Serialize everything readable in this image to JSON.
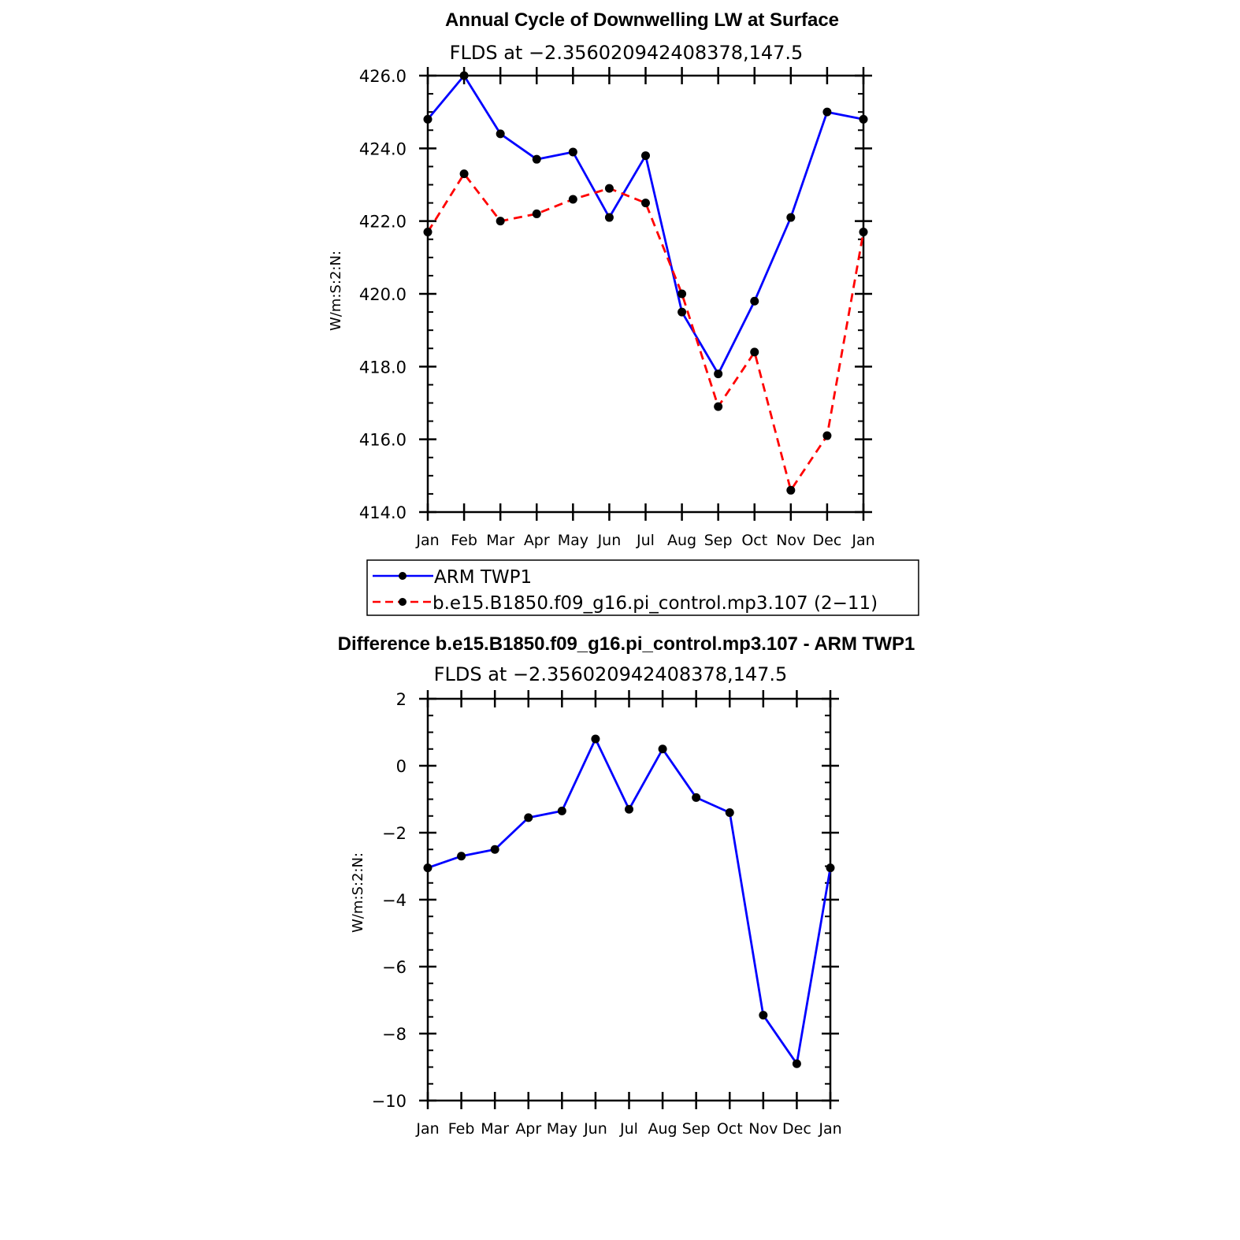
{
  "chart_data": [
    {
      "type": "line",
      "title": "Annual Cycle of Downwelling LW at Surface",
      "subtitle": "FLDS at −2.356020942408378,147.5",
      "ylabel": "W/m:S:2:N:",
      "ylim": [
        414.0,
        426.0
      ],
      "ytick_labels": [
        "426.0",
        "424.0",
        "422.0",
        "420.0",
        "418.0",
        "416.0",
        "414.0"
      ],
      "categories": [
        "Jan",
        "Feb",
        "Mar",
        "Apr",
        "May",
        "Jun",
        "Jul",
        "Aug",
        "Sep",
        "Oct",
        "Nov",
        "Dec",
        "Jan"
      ],
      "series": [
        {
          "name": "ARM TWP1",
          "color": "#0000ff",
          "style": "solid",
          "values": [
            424.8,
            426.0,
            424.4,
            423.7,
            423.9,
            422.1,
            423.8,
            419.5,
            417.8,
            419.8,
            422.1,
            425.0,
            424.8
          ]
        },
        {
          "name": "b.e15.B1850.f09_g16.pi_control.mp3.107 (2−11)",
          "color": "#ff0000",
          "style": "dashed",
          "values": [
            421.7,
            423.3,
            422.0,
            422.2,
            422.6,
            422.9,
            422.5,
            420.0,
            416.9,
            418.4,
            414.6,
            416.1,
            421.7
          ]
        }
      ]
    },
    {
      "type": "line",
      "title": "Difference b.e15.B1850.f09_g16.pi_control.mp3.107 - ARM TWP1",
      "subtitle": "FLDS at −2.356020942408378,147.5",
      "ylabel": "W/m:S:2:N:",
      "ylim": [
        -10,
        2
      ],
      "ytick_labels": [
        "2",
        "0",
        "−2",
        "−4",
        "−6",
        "−8",
        "−10"
      ],
      "categories": [
        "Jan",
        "Feb",
        "Mar",
        "Apr",
        "May",
        "Jun",
        "Jul",
        "Aug",
        "Sep",
        "Oct",
        "Nov",
        "Dec",
        "Jan"
      ],
      "series": [
        {
          "name": "Difference",
          "color": "#0000ff",
          "style": "solid",
          "values": [
            -3.05,
            -2.7,
            -2.5,
            -1.55,
            -1.35,
            0.8,
            -1.3,
            0.5,
            -0.95,
            -1.4,
            -7.45,
            -8.9,
            -3.05
          ]
        }
      ]
    }
  ]
}
